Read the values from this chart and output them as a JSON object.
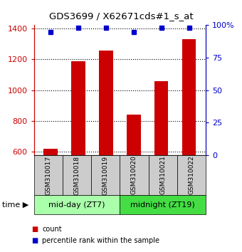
{
  "title": "GDS3699 / X62671cds#1_s_at",
  "samples": [
    "GSM310017",
    "GSM310018",
    "GSM310019",
    "GSM310020",
    "GSM310021",
    "GSM310022"
  ],
  "counts": [
    620,
    1185,
    1255,
    840,
    1060,
    1330
  ],
  "percentiles": [
    95,
    98,
    98,
    95,
    98,
    98
  ],
  "ylim": [
    580,
    1420
  ],
  "yticks": [
    600,
    800,
    1000,
    1200,
    1400
  ],
  "y2ticks": [
    0,
    25,
    50,
    75,
    100
  ],
  "y2labels": [
    "0",
    "25",
    "50",
    "75",
    "100%"
  ],
  "bar_color": "#cc0000",
  "dot_color": "#0000cc",
  "group_labels": [
    "mid-day (ZT7)",
    "midnight (ZT19)"
  ],
  "group_colors": [
    "#aaffaa",
    "#44dd44"
  ],
  "time_label": "time ▶",
  "legend_items": [
    {
      "color": "#cc0000",
      "label": "count"
    },
    {
      "color": "#0000cc",
      "label": "percentile rank within the sample"
    }
  ],
  "left_label_color": "#cc0000",
  "right_label_color": "#0000cc",
  "sample_box_color": "#cccccc"
}
